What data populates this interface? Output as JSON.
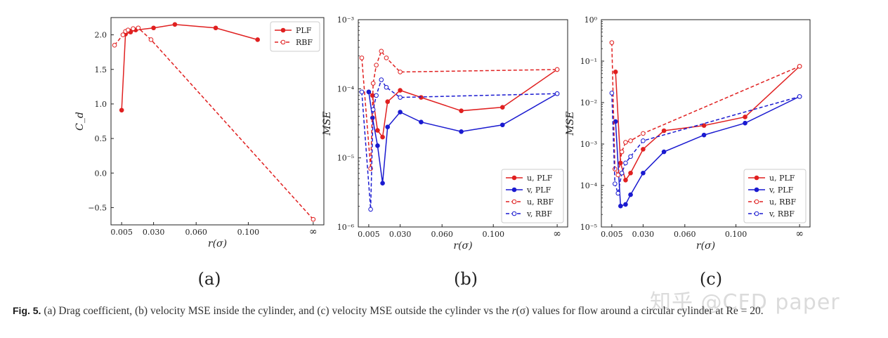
{
  "figure": {
    "caption_label": "Fig. 5.",
    "caption_text_1": "(a) Drag coefficient, (b) velocity MSE inside the cylinder, and (c) velocity MSE outside the cylinder vs the ",
    "caption_var": "r",
    "caption_sigma": "(σ)",
    "caption_text_2": " values for flow around a circular cylinder at Re = 20.",
    "watermark": "知乎 @CFD paper"
  },
  "colors": {
    "red": "#e02020",
    "blue": "#1a1ad0",
    "axis": "#222222"
  },
  "chart_data": [
    {
      "id": "a",
      "panel_label": "(a)",
      "type": "line",
      "ylabel": "C_d",
      "xlabel": "r(σ)",
      "yscale": "linear",
      "ylim": [
        -0.75,
        2.25
      ],
      "yticks": [
        "−0.5",
        "0.0",
        "0.5",
        "1.0",
        "1.5",
        "2.0"
      ],
      "ytick_values": [
        -0.5,
        0.0,
        0.5,
        1.0,
        1.5,
        2.0
      ],
      "x_axis_note": "non-uniform axis; last tick is infinity",
      "xticks": [
        "0.005",
        "0.030",
        "0.060",
        "0.100",
        "∞"
      ],
      "legend": {
        "position": "top-right",
        "entries": [
          "PLF",
          "RBF"
        ]
      },
      "series": [
        {
          "name": "PLF",
          "color": "#e02020",
          "marker": "filled",
          "dashed": false,
          "x": [
            0.005,
            0.008,
            0.012,
            0.016,
            0.03,
            0.045,
            0.075,
            0.11
          ],
          "y": [
            0.91,
            2.01,
            2.04,
            2.07,
            2.1,
            2.15,
            2.1,
            1.93
          ]
        },
        {
          "name": "RBF",
          "color": "#e02020",
          "marker": "open",
          "dashed": true,
          "x": [
            0.004,
            0.006,
            0.008,
            0.01,
            0.014,
            0.018,
            0.028,
            "inf"
          ],
          "y": [
            1.85,
            2.0,
            2.05,
            2.07,
            2.09,
            2.1,
            1.93,
            -0.67
          ]
        }
      ]
    },
    {
      "id": "b",
      "panel_label": "(b)",
      "type": "line",
      "ylabel": "MSE",
      "xlabel": "r(σ)",
      "yscale": "log",
      "ylim": [
        1e-06,
        0.001
      ],
      "yticks": [
        "10⁻⁶",
        "10⁻⁵",
        "10⁻⁴",
        "10⁻³"
      ],
      "ytick_values": [
        1e-06,
        1e-05,
        0.0001,
        0.001
      ],
      "xticks": [
        "0.005",
        "0.030",
        "0.060",
        "0.100",
        "∞"
      ],
      "legend": {
        "position": "bottom-right",
        "entries": [
          "u, PLF",
          "v, PLF",
          "u, RBF",
          "v, RBF"
        ]
      },
      "series": [
        {
          "name": "u, PLF",
          "color": "#e02020",
          "marker": "filled",
          "dashed": false,
          "x": [
            0.005,
            0.008,
            0.012,
            0.016,
            0.02,
            0.03,
            0.045,
            0.075,
            0.11,
            "inf"
          ],
          "y": [
            9e-05,
            8e-05,
            2.5e-05,
            2e-05,
            6.5e-05,
            9.5e-05,
            7.5e-05,
            4.8e-05,
            5.4e-05,
            0.00019
          ]
        },
        {
          "name": "v, PLF",
          "color": "#1a1ad0",
          "marker": "filled",
          "dashed": false,
          "x": [
            0.005,
            0.008,
            0.012,
            0.016,
            0.02,
            0.03,
            0.045,
            0.075,
            0.11,
            "inf"
          ],
          "y": [
            9e-05,
            3.8e-05,
            1.5e-05,
            4.3e-06,
            2.8e-05,
            4.6e-05,
            3.3e-05,
            2.4e-05,
            3e-05,
            8.5e-05
          ]
        },
        {
          "name": "u, RBF",
          "color": "#e02020",
          "marker": "open",
          "dashed": true,
          "x": [
            0.004,
            0.0065,
            0.0085,
            0.011,
            0.015,
            0.019,
            0.03,
            "inf"
          ],
          "y": [
            0.00028,
            7e-06,
            0.00012,
            0.00022,
            0.00035,
            0.00028,
            0.000175,
            0.00019
          ]
        },
        {
          "name": "v, RBF",
          "color": "#1a1ad0",
          "marker": "open",
          "dashed": true,
          "x": [
            0.004,
            0.0065,
            0.0085,
            0.011,
            0.015,
            0.019,
            0.03,
            "inf"
          ],
          "y": [
            9e-05,
            1.8e-06,
            5e-05,
            8e-05,
            0.000135,
            0.000105,
            7.5e-05,
            8.5e-05
          ]
        }
      ]
    },
    {
      "id": "c",
      "panel_label": "(c)",
      "type": "line",
      "ylabel": "MSE",
      "xlabel": "r(σ)",
      "yscale": "log",
      "ylim": [
        1e-05,
        1
      ],
      "yticks": [
        "10⁻⁵",
        "10⁻⁴",
        "10⁻³",
        "10⁻²",
        "10⁻¹",
        "10⁰"
      ],
      "ytick_values": [
        1e-05,
        0.0001,
        0.001,
        0.01,
        0.1,
        1
      ],
      "xticks": [
        "0.005",
        "0.030",
        "0.060",
        "0.100",
        "∞"
      ],
      "legend": {
        "position": "bottom-right",
        "entries": [
          "u, PLF",
          "v, PLF",
          "u, RBF",
          "v, RBF"
        ]
      },
      "series": [
        {
          "name": "u, PLF",
          "color": "#e02020",
          "marker": "filled",
          "dashed": false,
          "x": [
            0.008,
            0.012,
            0.016,
            0.02,
            0.03,
            0.045,
            0.075,
            0.11,
            "inf"
          ],
          "y": [
            0.055,
            0.00035,
            0.000135,
            0.0002,
            0.00075,
            0.0021,
            0.0028,
            0.0045,
            0.075
          ]
        },
        {
          "name": "v, PLF",
          "color": "#1a1ad0",
          "marker": "filled",
          "dashed": false,
          "x": [
            0.008,
            0.012,
            0.016,
            0.02,
            0.03,
            0.045,
            0.075,
            0.11,
            "inf"
          ],
          "y": [
            0.0035,
            3.2e-05,
            3.5e-05,
            6e-05,
            0.0002,
            0.00065,
            0.00165,
            0.0032,
            0.014
          ]
        },
        {
          "name": "u, RBF",
          "color": "#e02020",
          "marker": "open",
          "dashed": true,
          "x": [
            0.005,
            0.0075,
            0.01,
            0.013,
            0.016,
            0.02,
            0.03,
            "inf"
          ],
          "y": [
            0.28,
            0.00025,
            0.00018,
            0.00065,
            0.0011,
            0.0012,
            0.0018,
            0.075
          ]
        },
        {
          "name": "v, RBF",
          "color": "#1a1ad0",
          "marker": "open",
          "dashed": true,
          "x": [
            0.005,
            0.0075,
            0.01,
            0.013,
            0.016,
            0.02,
            0.03,
            "inf"
          ],
          "y": [
            0.017,
            0.00011,
            6.5e-05,
            0.0002,
            0.00035,
            0.0005,
            0.0012,
            0.014
          ]
        }
      ]
    }
  ]
}
